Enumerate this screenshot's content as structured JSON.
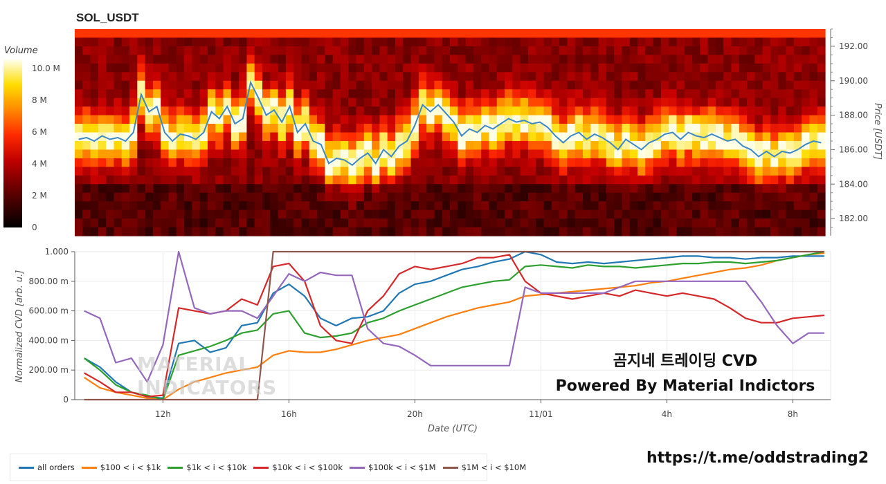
{
  "title": "SOL_USDT",
  "colors": {
    "all": "#1f77b4",
    "c1": "#ff7f0e",
    "c2": "#2ca02c",
    "c3": "#d62728",
    "c4": "#9467bd",
    "c5": "#8c564b"
  },
  "colorbar": {
    "label": "Volume",
    "ticks": [
      "10.0 M",
      "8 M",
      "6 M",
      "4 M",
      "2 M",
      "0"
    ]
  },
  "heatmap": {
    "ylabel": "Price [USDT]",
    "yticks": [
      "192.00",
      "190.00",
      "188.00",
      "186.00",
      "184.00",
      "182.00"
    ],
    "price_series": [
      186.6,
      186.7,
      186.5,
      186.8,
      186.6,
      186.7,
      186.5,
      187.0,
      189.2,
      188.2,
      188.5,
      187.0,
      186.5,
      186.9,
      186.8,
      186.6,
      187.0,
      188.2,
      187.8,
      188.5,
      187.5,
      187.8,
      189.9,
      189.0,
      188.0,
      188.3,
      187.6,
      188.5,
      187.0,
      187.5,
      186.5,
      186.3,
      185.2,
      185.5,
      185.4,
      185.1,
      185.5,
      185.8,
      185.2,
      186.0,
      185.6,
      186.2,
      186.5,
      187.4,
      188.6,
      188.2,
      188.6,
      188.1,
      187.6,
      186.8,
      187.2,
      187.0,
      187.4,
      187.2,
      187.5,
      187.8,
      187.6,
      187.7,
      187.5,
      187.6,
      187.3,
      186.8,
      186.4,
      186.8,
      187.0,
      186.6,
      186.9,
      186.7,
      186.4,
      186.0,
      186.6,
      186.3,
      186.0,
      186.4,
      186.6,
      186.9,
      187.0,
      186.6,
      187.0,
      186.8,
      186.7,
      186.9,
      186.7,
      186.5,
      186.6,
      186.2,
      186.0,
      185.6,
      185.9,
      185.6,
      185.9,
      185.8,
      186.0,
      186.3,
      186.5,
      186.4
    ]
  },
  "cvd": {
    "ylabel": "Normalized CVD [arb. u.]",
    "yticks": [
      "1.000",
      "800.00 m",
      "600.00 m",
      "400.00 m",
      "200.00 m",
      "0"
    ],
    "xlabel": "Date (UTC)",
    "xticks": [
      "12h",
      "16h",
      "20h",
      "11/01",
      "4h",
      "8h"
    ],
    "overlay_line1": "곰지네 트레이딩 CVD",
    "overlay_line2": "Powered By Material Indictors",
    "watermark": "MATERIAL\nINDICATORS"
  },
  "chart_data": [
    {
      "type": "heatmap",
      "title": "SOL_USDT",
      "ylabel": "Price [USDT]",
      "ylim": [
        181,
        193
      ],
      "colorbar_label": "Volume",
      "colorbar_range": [
        0,
        11000000
      ]
    },
    {
      "type": "line",
      "xlabel": "Date (UTC)",
      "ylabel": "Normalized CVD [arb. u.]",
      "ylim": [
        0,
        1
      ],
      "x_hours": [
        9.5,
        10,
        10.5,
        11,
        11.5,
        12,
        12.5,
        13,
        13.5,
        14,
        14.5,
        15,
        15.5,
        16,
        16.5,
        17,
        17.5,
        18,
        18.5,
        19,
        19.5,
        20,
        20.5,
        21,
        21.5,
        22,
        22.5,
        23,
        23.5,
        24,
        24.5,
        25,
        25.5,
        26,
        26.5,
        27,
        27.5,
        28,
        28.5,
        29,
        29.5,
        30,
        30.5,
        31,
        31.5,
        32,
        32.5,
        33
      ],
      "xticks": [
        "12h",
        "16h",
        "20h",
        "11/01",
        "4h",
        "8h"
      ],
      "series": [
        {
          "name": "all orders",
          "color": "#1f77b4",
          "values": [
            0.28,
            0.22,
            0.12,
            0.05,
            0.02,
            0.01,
            0.38,
            0.4,
            0.32,
            0.35,
            0.5,
            0.52,
            0.72,
            0.78,
            0.7,
            0.55,
            0.5,
            0.55,
            0.56,
            0.6,
            0.72,
            0.78,
            0.8,
            0.84,
            0.88,
            0.9,
            0.93,
            0.95,
            1.0,
            0.98,
            0.93,
            0.92,
            0.93,
            0.92,
            0.93,
            0.94,
            0.95,
            0.96,
            0.97,
            0.97,
            0.96,
            0.96,
            0.95,
            0.96,
            0.96,
            0.97,
            0.97,
            0.97
          ]
        },
        {
          "name": "$100 < i < $1k",
          "color": "#ff7f0e",
          "values": [
            0.15,
            0.08,
            0.05,
            0.03,
            0.01,
            0.0,
            0.07,
            0.12,
            0.15,
            0.18,
            0.2,
            0.22,
            0.3,
            0.33,
            0.32,
            0.32,
            0.34,
            0.37,
            0.4,
            0.42,
            0.44,
            0.48,
            0.52,
            0.56,
            0.59,
            0.62,
            0.64,
            0.66,
            0.7,
            0.71,
            0.72,
            0.73,
            0.74,
            0.75,
            0.76,
            0.77,
            0.79,
            0.8,
            0.82,
            0.84,
            0.86,
            0.88,
            0.89,
            0.91,
            0.94,
            0.96,
            0.98,
            0.99
          ]
        },
        {
          "name": "$1k < i < $10k",
          "color": "#2ca02c",
          "values": [
            0.28,
            0.2,
            0.1,
            0.05,
            0.03,
            0.0,
            0.3,
            0.33,
            0.36,
            0.4,
            0.45,
            0.47,
            0.58,
            0.6,
            0.45,
            0.42,
            0.43,
            0.45,
            0.52,
            0.55,
            0.6,
            0.64,
            0.68,
            0.72,
            0.76,
            0.78,
            0.8,
            0.81,
            0.9,
            0.91,
            0.9,
            0.89,
            0.91,
            0.9,
            0.9,
            0.89,
            0.9,
            0.91,
            0.92,
            0.92,
            0.93,
            0.93,
            0.92,
            0.93,
            0.94,
            0.96,
            0.98,
            1.0
          ]
        },
        {
          "name": "$10k < i < $100k",
          "color": "#d62728",
          "values": [
            0.18,
            0.12,
            0.05,
            0.05,
            0.02,
            0.03,
            0.62,
            0.6,
            0.58,
            0.6,
            0.68,
            0.64,
            0.9,
            0.92,
            0.8,
            0.5,
            0.4,
            0.38,
            0.6,
            0.7,
            0.85,
            0.9,
            0.88,
            0.9,
            0.92,
            0.96,
            0.96,
            0.98,
            0.8,
            0.72,
            0.7,
            0.68,
            0.7,
            0.72,
            0.7,
            0.74,
            0.72,
            0.7,
            0.72,
            0.7,
            0.68,
            0.62,
            0.55,
            0.52,
            0.52,
            0.55,
            0.56,
            0.57
          ]
        },
        {
          "name": "$100k < i < $1M",
          "color": "#9467bd",
          "values": [
            0.6,
            0.55,
            0.25,
            0.28,
            0.12,
            0.37,
            1.0,
            0.62,
            0.58,
            0.6,
            0.6,
            0.55,
            0.7,
            0.85,
            0.8,
            0.86,
            0.84,
            0.84,
            0.48,
            0.38,
            0.36,
            0.3,
            0.23,
            0.23,
            0.23,
            0.23,
            0.23,
            0.23,
            0.76,
            0.72,
            0.72,
            0.72,
            0.72,
            0.72,
            0.76,
            0.8,
            0.8,
            0.8,
            0.8,
            0.8,
            0.8,
            0.8,
            0.8,
            0.66,
            0.5,
            0.38,
            0.45,
            0.45
          ]
        },
        {
          "name": "$1M < i < $10M",
          "color": "#8c564b",
          "values": [
            0,
            0,
            0,
            0,
            0,
            0,
            0,
            0,
            0,
            0,
            0,
            0,
            1,
            1,
            1,
            1,
            1,
            1,
            1,
            1,
            1,
            1,
            1,
            1,
            1,
            1,
            1,
            1,
            1,
            1,
            1,
            1,
            1,
            1,
            1,
            1,
            1,
            1,
            1,
            1,
            1,
            1,
            1,
            1,
            1,
            1,
            1,
            1
          ]
        }
      ]
    }
  ],
  "legend": [
    {
      "label": "all orders",
      "color": "#1f77b4"
    },
    {
      "label": "$100 < i < $1k",
      "color": "#ff7f0e"
    },
    {
      "label": "$1k < i < $10k",
      "color": "#2ca02c"
    },
    {
      "label": "$10k < i < $100k",
      "color": "#d62728"
    },
    {
      "label": "$100k < i < $1M",
      "color": "#9467bd"
    },
    {
      "label": "$1M < i < $10M",
      "color": "#8c564b"
    }
  ],
  "url": "https://t.me/oddstrading2"
}
